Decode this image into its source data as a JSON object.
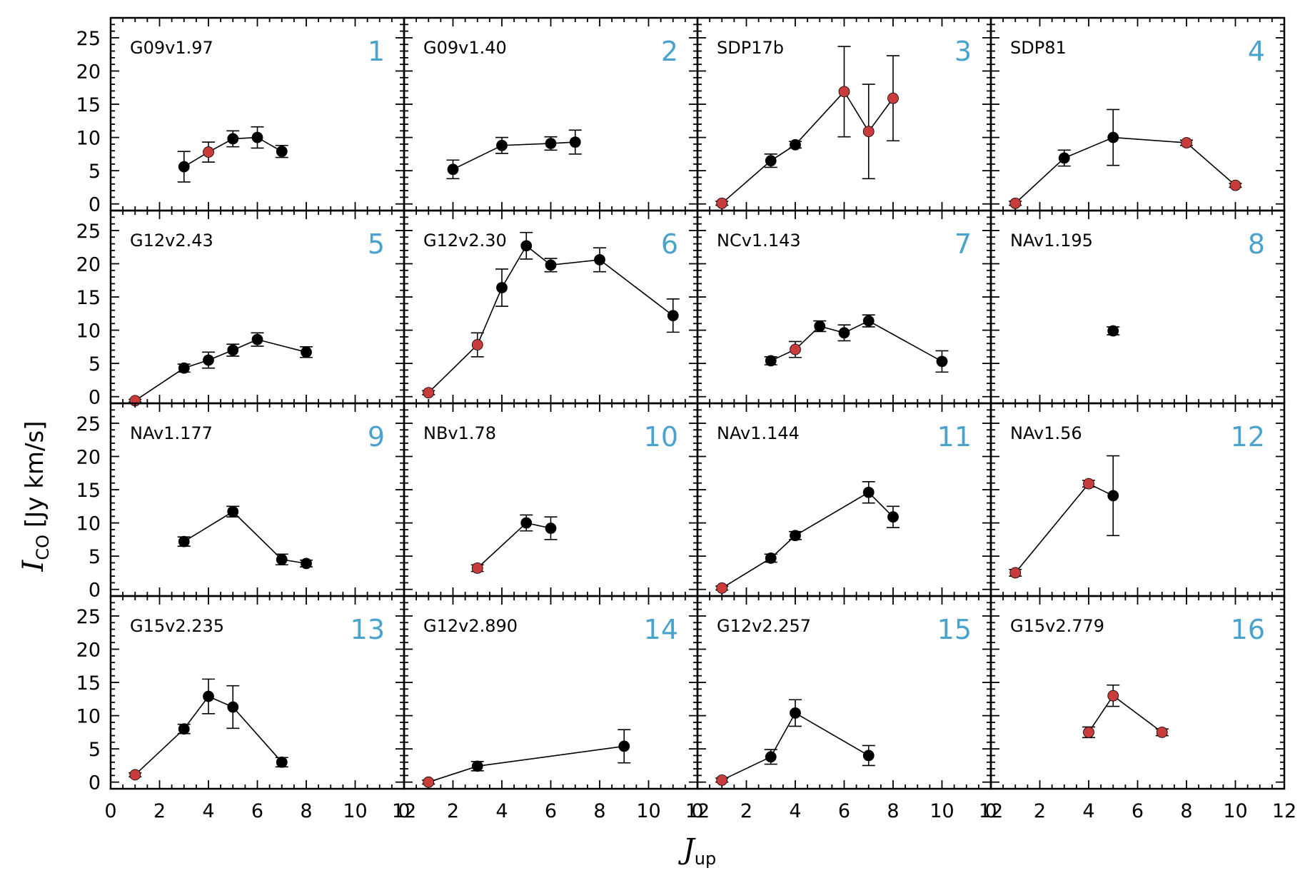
{
  "colors": {
    "detected_point": "#000000",
    "highlight_point": "#c83c3c",
    "panel_number": "#4aa3cc",
    "axes": "#000000"
  },
  "chart_data": {
    "type": "scatter",
    "layout": "4x4 grid of panels with shared axes",
    "xlabel": {
      "symbol": "J",
      "subscript": "up"
    },
    "ylabel": {
      "symbol": "I",
      "subscript": "CO",
      "unit": "[Jy km/s]"
    },
    "xlim": [
      0,
      12
    ],
    "ylim": [
      -1,
      28
    ],
    "xticks": [
      0,
      2,
      4,
      6,
      8,
      10,
      12
    ],
    "yticks": [
      0,
      5,
      10,
      15,
      20,
      25
    ],
    "grid": false,
    "legend": "none",
    "panels": [
      {
        "name": "G09v1.97",
        "number": "1",
        "points": [
          {
            "x": 3,
            "y": 5.6,
            "err": 2.3,
            "red": false
          },
          {
            "x": 4,
            "y": 7.8,
            "err": 1.5,
            "red": true
          },
          {
            "x": 5,
            "y": 9.8,
            "err": 1.2,
            "red": false
          },
          {
            "x": 6,
            "y": 10.0,
            "err": 1.6,
            "red": false
          },
          {
            "x": 7,
            "y": 7.9,
            "err": 0.9,
            "red": false
          }
        ]
      },
      {
        "name": "G09v1.40",
        "number": "2",
        "points": [
          {
            "x": 2,
            "y": 5.2,
            "err": 1.4,
            "red": false
          },
          {
            "x": 4,
            "y": 8.8,
            "err": 1.2,
            "red": false
          },
          {
            "x": 6,
            "y": 9.1,
            "err": 1.0,
            "red": false
          },
          {
            "x": 7,
            "y": 9.3,
            "err": 1.8,
            "red": false
          }
        ]
      },
      {
        "name": "SDP17b",
        "number": "3",
        "points": [
          {
            "x": 1,
            "y": 0.1,
            "err": 0.3,
            "red": true
          },
          {
            "x": 3,
            "y": 6.5,
            "err": 1.0,
            "red": false
          },
          {
            "x": 4,
            "y": 8.9,
            "err": 0.5,
            "red": false
          },
          {
            "x": 6,
            "y": 16.9,
            "err": 6.8,
            "red": true
          },
          {
            "x": 7,
            "y": 10.9,
            "err": 7.1,
            "red": true
          },
          {
            "x": 8,
            "y": 15.9,
            "err": 6.4,
            "red": true
          }
        ]
      },
      {
        "name": "SDP81",
        "number": "4",
        "points": [
          {
            "x": 1,
            "y": 0.1,
            "err": 0.3,
            "red": true
          },
          {
            "x": 3,
            "y": 6.9,
            "err": 1.2,
            "red": false
          },
          {
            "x": 5,
            "y": 10.0,
            "err": 4.2,
            "red": false
          },
          {
            "x": 8,
            "y": 9.2,
            "err": 0.4,
            "red": true
          },
          {
            "x": 10,
            "y": 2.8,
            "err": 0.3,
            "red": true
          }
        ]
      },
      {
        "name": "G12v2.43",
        "number": "5",
        "points": [
          {
            "x": 1,
            "y": -0.6,
            "err": 0.2,
            "red": true
          },
          {
            "x": 3,
            "y": 4.3,
            "err": 0.6,
            "red": false
          },
          {
            "x": 4,
            "y": 5.5,
            "err": 1.2,
            "red": false
          },
          {
            "x": 5,
            "y": 7.0,
            "err": 0.9,
            "red": false
          },
          {
            "x": 6,
            "y": 8.6,
            "err": 1.0,
            "red": false
          },
          {
            "x": 8,
            "y": 6.7,
            "err": 0.8,
            "red": false
          }
        ]
      },
      {
        "name": "G12v2.30",
        "number": "6",
        "points": [
          {
            "x": 1,
            "y": 0.6,
            "err": 0.3,
            "red": true
          },
          {
            "x": 3,
            "y": 7.8,
            "err": 1.8,
            "red": true
          },
          {
            "x": 4,
            "y": 16.4,
            "err": 2.8,
            "red": false
          },
          {
            "x": 5,
            "y": 22.7,
            "err": 2.0,
            "red": false
          },
          {
            "x": 6,
            "y": 19.8,
            "err": 1.0,
            "red": false
          },
          {
            "x": 8,
            "y": 20.6,
            "err": 1.8,
            "red": false
          },
          {
            "x": 11,
            "y": 12.2,
            "err": 2.5,
            "red": false
          }
        ]
      },
      {
        "name": "NCv1.143",
        "number": "7",
        "points": [
          {
            "x": 3,
            "y": 5.4,
            "err": 0.6,
            "red": false
          },
          {
            "x": 4,
            "y": 7.1,
            "err": 1.2,
            "red": true
          },
          {
            "x": 5,
            "y": 10.6,
            "err": 0.8,
            "red": false
          },
          {
            "x": 6,
            "y": 9.6,
            "err": 1.2,
            "red": false
          },
          {
            "x": 7,
            "y": 11.4,
            "err": 0.9,
            "red": false
          },
          {
            "x": 10,
            "y": 5.3,
            "err": 1.6,
            "red": false
          }
        ]
      },
      {
        "name": "NAv1.195",
        "number": "8",
        "points": [
          {
            "x": 5,
            "y": 9.9,
            "err": 0.6,
            "red": false
          }
        ]
      },
      {
        "name": "NAv1.177",
        "number": "9",
        "points": [
          {
            "x": 3,
            "y": 7.2,
            "err": 0.7,
            "red": false
          },
          {
            "x": 5,
            "y": 11.7,
            "err": 0.8,
            "red": false
          },
          {
            "x": 7,
            "y": 4.5,
            "err": 0.8,
            "red": false
          },
          {
            "x": 8,
            "y": 3.9,
            "err": 0.5,
            "red": false
          }
        ]
      },
      {
        "name": "NBv1.78",
        "number": "10",
        "points": [
          {
            "x": 3,
            "y": 3.2,
            "err": 0.5,
            "red": true
          },
          {
            "x": 5,
            "y": 10.0,
            "err": 1.2,
            "red": false
          },
          {
            "x": 6,
            "y": 9.2,
            "err": 1.7,
            "red": false
          }
        ]
      },
      {
        "name": "NAv1.144",
        "number": "11",
        "points": [
          {
            "x": 1,
            "y": 0.2,
            "err": 0.3,
            "red": true
          },
          {
            "x": 3,
            "y": 4.7,
            "err": 0.6,
            "red": false
          },
          {
            "x": 4,
            "y": 8.1,
            "err": 0.6,
            "red": false
          },
          {
            "x": 7,
            "y": 14.6,
            "err": 1.6,
            "red": false
          },
          {
            "x": 8,
            "y": 10.9,
            "err": 1.6,
            "red": false
          }
        ]
      },
      {
        "name": "NAv1.56",
        "number": "12",
        "points": [
          {
            "x": 1,
            "y": 2.5,
            "err": 0.5,
            "red": true
          },
          {
            "x": 4,
            "y": 15.9,
            "err": 0.5,
            "red": true
          },
          {
            "x": 5,
            "y": 14.1,
            "err": 6.0,
            "red": false
          }
        ]
      },
      {
        "name": "G15v2.235",
        "number": "13",
        "points": [
          {
            "x": 1,
            "y": 1.1,
            "err": 0.3,
            "red": true
          },
          {
            "x": 3,
            "y": 8.0,
            "err": 0.7,
            "red": false
          },
          {
            "x": 4,
            "y": 12.9,
            "err": 2.6,
            "red": false
          },
          {
            "x": 5,
            "y": 11.3,
            "err": 3.2,
            "red": false
          },
          {
            "x": 7,
            "y": 3.0,
            "err": 0.7,
            "red": false
          }
        ]
      },
      {
        "name": "G12v2.890",
        "number": "14",
        "points": [
          {
            "x": 1,
            "y": 0.0,
            "err": 0.3,
            "red": true
          },
          {
            "x": 3,
            "y": 2.4,
            "err": 0.7,
            "red": false
          },
          {
            "x": 9,
            "y": 5.4,
            "err": 2.5,
            "red": false
          }
        ]
      },
      {
        "name": "G12v2.257",
        "number": "15",
        "points": [
          {
            "x": 1,
            "y": 0.3,
            "err": 0.3,
            "red": true
          },
          {
            "x": 3,
            "y": 3.8,
            "err": 1.1,
            "red": false
          },
          {
            "x": 4,
            "y": 10.4,
            "err": 2.0,
            "red": false
          },
          {
            "x": 7,
            "y": 4.0,
            "err": 1.5,
            "red": false
          }
        ]
      },
      {
        "name": "G15v2.779",
        "number": "16",
        "points": [
          {
            "x": 4,
            "y": 7.5,
            "err": 0.8,
            "red": true
          },
          {
            "x": 5,
            "y": 13.0,
            "err": 1.6,
            "red": true
          },
          {
            "x": 7,
            "y": 7.5,
            "err": 0.5,
            "red": true
          }
        ]
      }
    ]
  }
}
